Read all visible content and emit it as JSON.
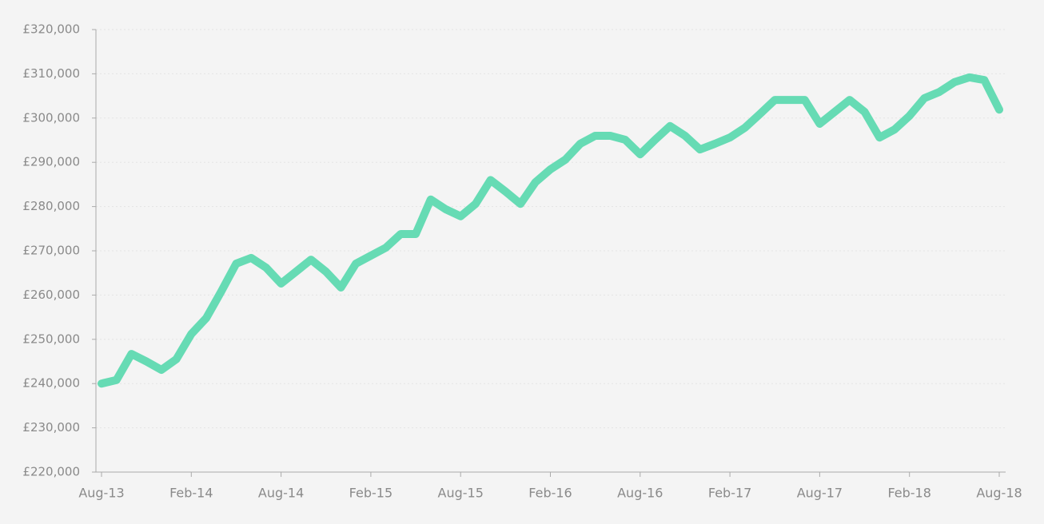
{
  "chart_data": {
    "type": "line",
    "categories": [
      "Aug-13",
      null,
      null,
      null,
      null,
      null,
      "Feb-14",
      null,
      null,
      null,
      null,
      null,
      "Aug-14",
      null,
      null,
      null,
      null,
      null,
      "Feb-15",
      null,
      null,
      null,
      null,
      null,
      "Aug-15",
      null,
      null,
      null,
      null,
      null,
      "Feb-16",
      null,
      null,
      null,
      null,
      null,
      "Aug-16",
      null,
      null,
      null,
      null,
      null,
      "Feb-17",
      null,
      null,
      null,
      null,
      null,
      "Aug-17",
      null,
      null,
      null,
      null,
      null,
      "Feb-18",
      null,
      null,
      null,
      null,
      null,
      "Aug-18"
    ],
    "values": [
      240000,
      240800,
      246700,
      245000,
      243100,
      245500,
      251200,
      254800,
      260800,
      267100,
      268400,
      266200,
      262600,
      265300,
      268000,
      265300,
      261700,
      267100,
      268900,
      270700,
      273800,
      273800,
      281600,
      279400,
      277800,
      280600,
      286000,
      283400,
      280600,
      285500,
      288400,
      290600,
      294200,
      296000,
      296000,
      295100,
      291800,
      295100,
      298200,
      296000,
      292900,
      294200,
      295600,
      297800,
      300900,
      304100,
      304100,
      304100,
      298700,
      301400,
      304100,
      301400,
      295600,
      297400,
      300500,
      304500,
      305900,
      308100,
      309200,
      308600,
      301900
    ],
    "color": "#66dbb4",
    "ylim": [
      220000,
      320000
    ],
    "yticks": [
      {
        "value": 220000,
        "label": "£220,000"
      },
      {
        "value": 230000,
        "label": "£230,000"
      },
      {
        "value": 240000,
        "label": "£240,000"
      },
      {
        "value": 250000,
        "label": "£250,000"
      },
      {
        "value": 260000,
        "label": "£260,000"
      },
      {
        "value": 270000,
        "label": "£270,000"
      },
      {
        "value": 280000,
        "label": "£280,000"
      },
      {
        "value": 290000,
        "label": "£290,000"
      },
      {
        "value": 300000,
        "label": "£300,000"
      },
      {
        "value": 310000,
        "label": "£310,000"
      },
      {
        "value": 320000,
        "label": "£320,000"
      }
    ],
    "grid": true
  }
}
